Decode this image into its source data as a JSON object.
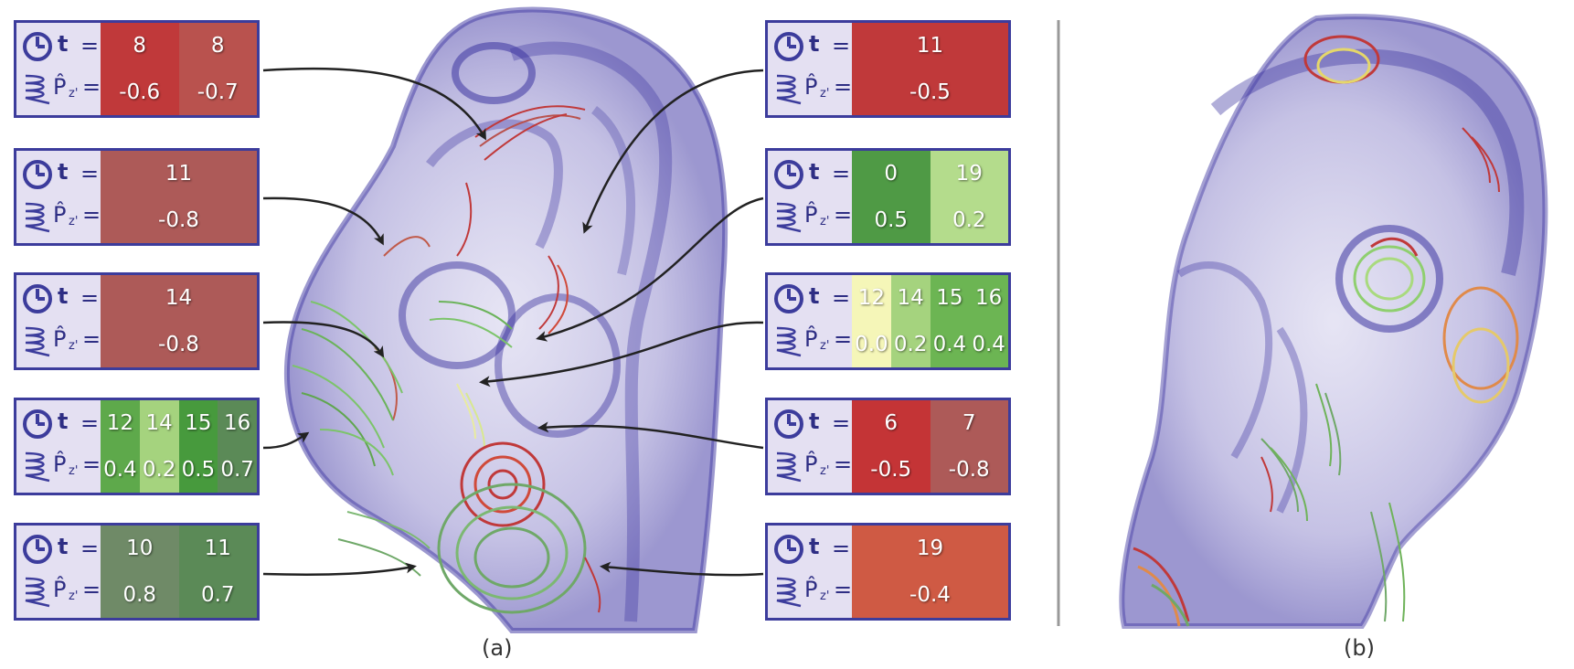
{
  "legend": {
    "time_label": "t",
    "time_eq": "=",
    "pressure_label": "P̂",
    "pressure_sub": "z'",
    "pressure_eq": "="
  },
  "boxes": [
    {
      "id": "left-1",
      "cells": [
        {
          "t": "8",
          "p": "-0.6",
          "color": "#c0393a"
        },
        {
          "t": "8",
          "p": "-0.7",
          "color": "#b9524e"
        }
      ]
    },
    {
      "id": "left-2",
      "cells": [
        {
          "t": "11",
          "p": "-0.8",
          "color": "#ad5a58"
        }
      ]
    },
    {
      "id": "left-3",
      "cells": [
        {
          "t": "14",
          "p": "-0.8",
          "color": "#ad5a58"
        }
      ]
    },
    {
      "id": "left-4",
      "cells": [
        {
          "t": "12",
          "p": "0.4",
          "color": "#5ea94b"
        },
        {
          "t": "14",
          "p": "0.2",
          "color": "#a5d37e"
        },
        {
          "t": "15",
          "p": "0.5",
          "color": "#479a3d"
        },
        {
          "t": "16",
          "p": "0.7",
          "color": "#5b8a57"
        }
      ]
    },
    {
      "id": "left-5",
      "cells": [
        {
          "t": "10",
          "p": "0.8",
          "color": "#6f8a67"
        },
        {
          "t": "11",
          "p": "0.7",
          "color": "#5b8a57"
        }
      ]
    },
    {
      "id": "right-1",
      "cells": [
        {
          "t": "11",
          "p": "-0.5",
          "color": "#c0393a"
        }
      ]
    },
    {
      "id": "right-2",
      "cells": [
        {
          "t": "0",
          "p": "0.5",
          "color": "#4f9a45"
        },
        {
          "t": "19",
          "p": "0.2",
          "color": "#b4dc8c"
        }
      ]
    },
    {
      "id": "right-3",
      "cells": [
        {
          "t": "12",
          "p": "0.0",
          "color": "#f5f6b8"
        },
        {
          "t": "14",
          "p": "0.2",
          "color": "#a5d37e"
        },
        {
          "t": "15",
          "p": "0.4",
          "color": "#6cb553"
        },
        {
          "t": "16",
          "p": "0.4",
          "color": "#6cb553"
        }
      ]
    },
    {
      "id": "right-4",
      "cells": [
        {
          "t": "6",
          "p": "-0.5",
          "color": "#c43436"
        },
        {
          "t": "7",
          "p": "-0.8",
          "color": "#ad5a58"
        }
      ]
    },
    {
      "id": "right-5",
      "cells": [
        {
          "t": "19",
          "p": "-0.4",
          "color": "#cf5a44"
        }
      ]
    }
  ],
  "captions": {
    "a": "(a)",
    "b": "(b)"
  }
}
